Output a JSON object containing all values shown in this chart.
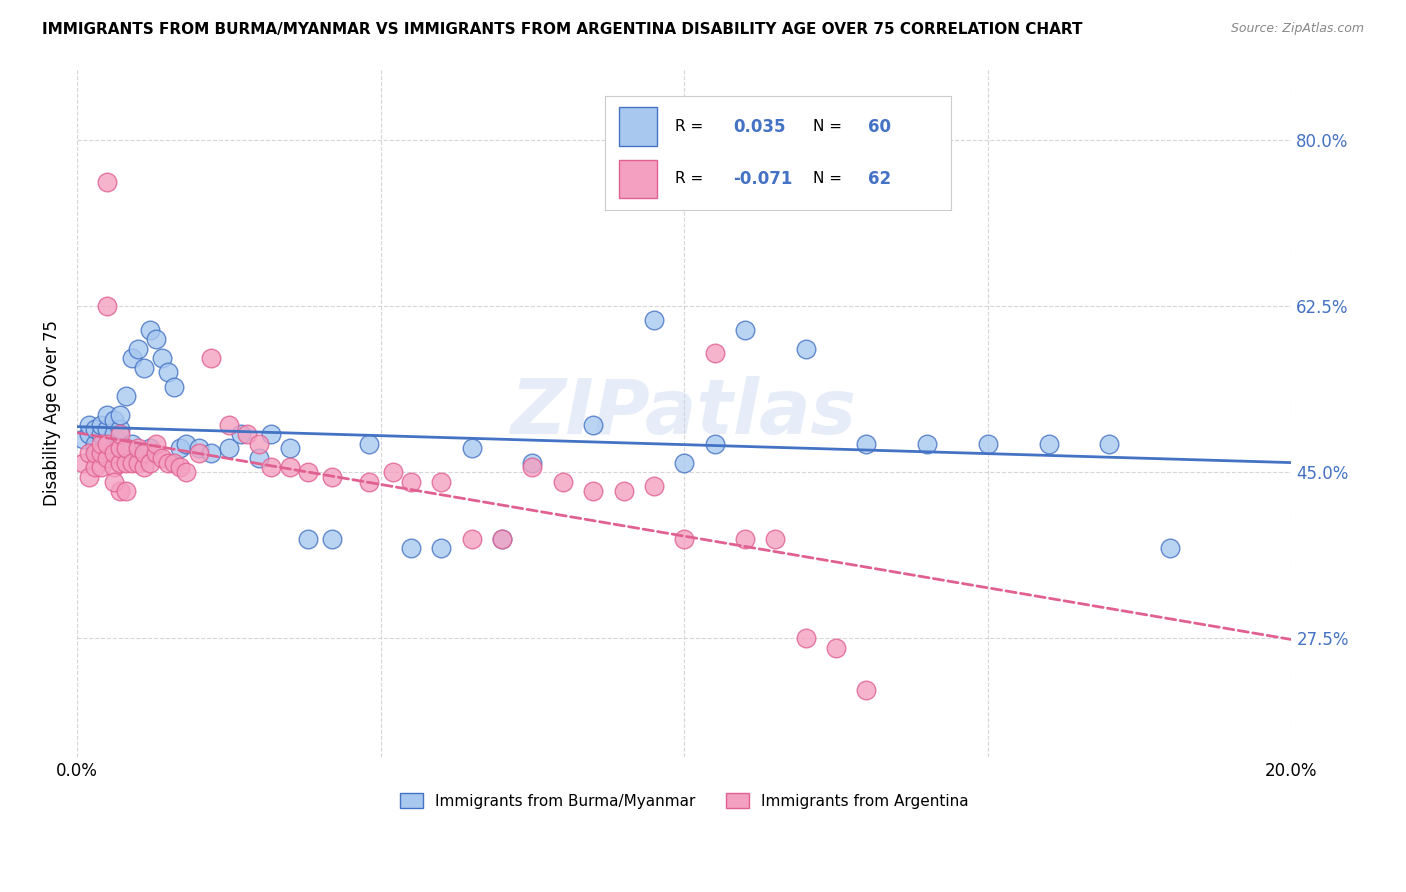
{
  "title": "IMMIGRANTS FROM BURMA/MYANMAR VS IMMIGRANTS FROM ARGENTINA DISABILITY AGE OVER 75 CORRELATION CHART",
  "source": "Source: ZipAtlas.com",
  "ylabel": "Disability Age Over 75",
  "ytick_labels": [
    "27.5%",
    "45.0%",
    "62.5%",
    "80.0%"
  ],
  "ytick_values": [
    0.275,
    0.45,
    0.625,
    0.8
  ],
  "xlim": [
    0.0,
    0.2
  ],
  "ylim": [
    0.15,
    0.875
  ],
  "legend_label1": "Immigrants from Burma/Myanmar",
  "legend_label2": "Immigrants from Argentina",
  "r1": 0.035,
  "n1": 60,
  "r2": -0.071,
  "n2": 62,
  "color_blue": "#A8C8F0",
  "color_pink": "#F4A0C0",
  "color_blue_dark": "#4472C4",
  "color_pink_dark": "#E06090",
  "background_color": "#FFFFFF",
  "watermark": "ZIPatlas",
  "blue_points_x": [
    0.001,
    0.002,
    0.002,
    0.003,
    0.003,
    0.003,
    0.004,
    0.004,
    0.004,
    0.005,
    0.005,
    0.005,
    0.006,
    0.006,
    0.006,
    0.007,
    0.007,
    0.007,
    0.008,
    0.008,
    0.009,
    0.009,
    0.01,
    0.01,
    0.011,
    0.012,
    0.012,
    0.013,
    0.014,
    0.015,
    0.016,
    0.017,
    0.018,
    0.02,
    0.022,
    0.025,
    0.027,
    0.03,
    0.032,
    0.035,
    0.038,
    0.042,
    0.048,
    0.055,
    0.06,
    0.065,
    0.07,
    0.075,
    0.085,
    0.095,
    0.1,
    0.105,
    0.11,
    0.12,
    0.13,
    0.14,
    0.15,
    0.16,
    0.17,
    0.18
  ],
  "blue_points_y": [
    0.485,
    0.49,
    0.5,
    0.475,
    0.48,
    0.495,
    0.47,
    0.49,
    0.5,
    0.48,
    0.495,
    0.51,
    0.475,
    0.49,
    0.505,
    0.48,
    0.495,
    0.51,
    0.475,
    0.53,
    0.48,
    0.57,
    0.465,
    0.58,
    0.56,
    0.475,
    0.6,
    0.59,
    0.57,
    0.555,
    0.54,
    0.475,
    0.48,
    0.475,
    0.47,
    0.475,
    0.49,
    0.465,
    0.49,
    0.475,
    0.38,
    0.38,
    0.48,
    0.37,
    0.37,
    0.475,
    0.38,
    0.46,
    0.5,
    0.61,
    0.46,
    0.48,
    0.6,
    0.58,
    0.48,
    0.48,
    0.48,
    0.48,
    0.48,
    0.37
  ],
  "pink_points_x": [
    0.001,
    0.002,
    0.002,
    0.003,
    0.003,
    0.004,
    0.004,
    0.004,
    0.005,
    0.005,
    0.005,
    0.006,
    0.006,
    0.007,
    0.007,
    0.007,
    0.008,
    0.008,
    0.009,
    0.01,
    0.01,
    0.011,
    0.011,
    0.012,
    0.013,
    0.013,
    0.014,
    0.015,
    0.016,
    0.017,
    0.018,
    0.02,
    0.022,
    0.025,
    0.028,
    0.032,
    0.035,
    0.038,
    0.042,
    0.048,
    0.052,
    0.055,
    0.06,
    0.065,
    0.07,
    0.075,
    0.08,
    0.085,
    0.09,
    0.095,
    0.1,
    0.105,
    0.11,
    0.115,
    0.12,
    0.125,
    0.13,
    0.005,
    0.007,
    0.006,
    0.008,
    0.03
  ],
  "pink_points_y": [
    0.46,
    0.445,
    0.47,
    0.455,
    0.47,
    0.455,
    0.47,
    0.48,
    0.755,
    0.465,
    0.48,
    0.455,
    0.47,
    0.46,
    0.475,
    0.49,
    0.46,
    0.475,
    0.46,
    0.46,
    0.475,
    0.455,
    0.47,
    0.46,
    0.47,
    0.48,
    0.465,
    0.46,
    0.46,
    0.455,
    0.45,
    0.47,
    0.57,
    0.5,
    0.49,
    0.455,
    0.455,
    0.45,
    0.445,
    0.44,
    0.45,
    0.44,
    0.44,
    0.38,
    0.38,
    0.455,
    0.44,
    0.43,
    0.43,
    0.435,
    0.38,
    0.575,
    0.38,
    0.38,
    0.275,
    0.265,
    0.22,
    0.625,
    0.43,
    0.44,
    0.43,
    0.48
  ]
}
